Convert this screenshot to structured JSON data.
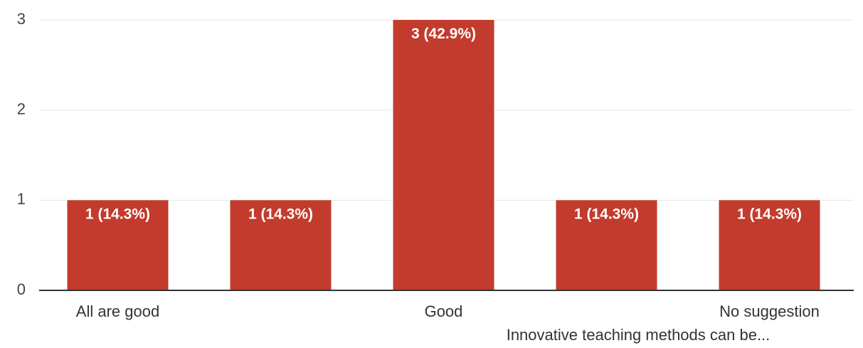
{
  "chart_data": {
    "type": "bar",
    "categories": [
      "All are good",
      "",
      "Good",
      "",
      "No suggestion"
    ],
    "values": [
      1,
      1,
      3,
      1,
      1
    ],
    "data_labels": [
      "1 (14.3%)",
      "1 (14.3%)",
      "3 (42.9%)",
      "1 (14.3%)",
      "1 (14.3%)"
    ],
    "extra_category_label": "Innovative teaching methods can be...",
    "title": "",
    "xlabel": "",
    "ylabel": "",
    "ylim": [
      0,
      3
    ],
    "yticks": [
      "0",
      "1",
      "2",
      "3"
    ],
    "grid": true,
    "bar_color": "#c23b2c"
  }
}
